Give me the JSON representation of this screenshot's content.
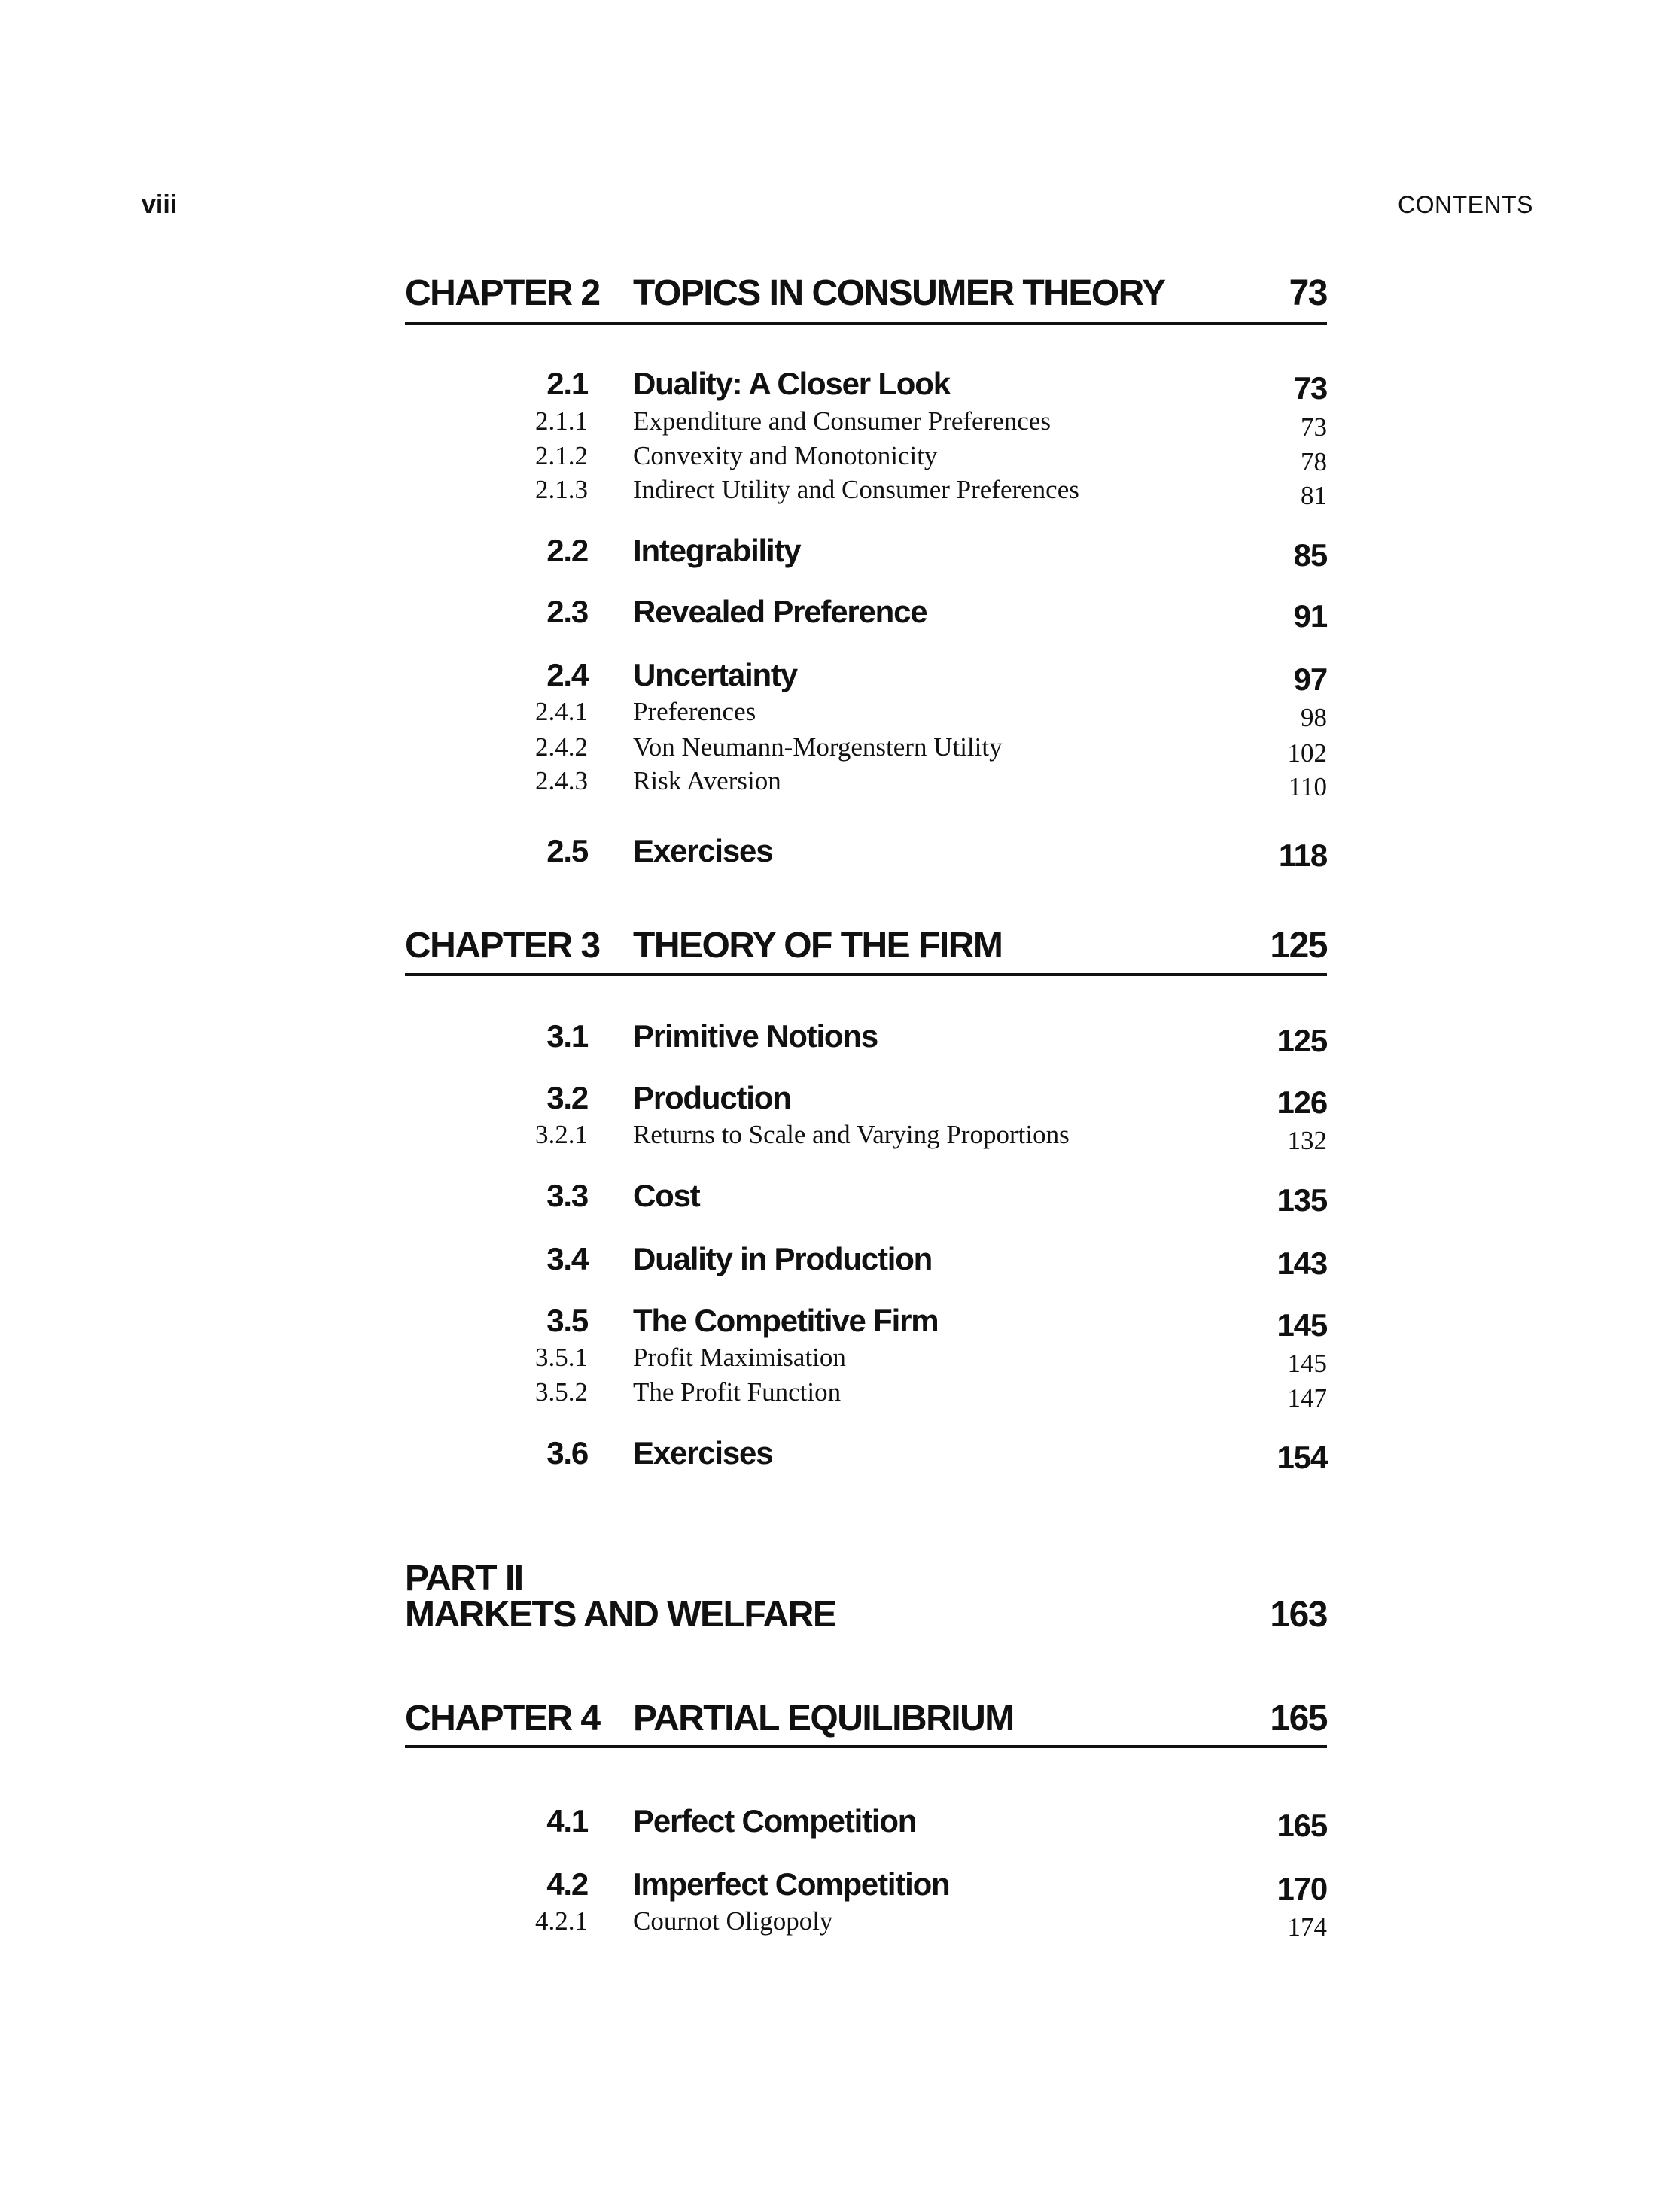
{
  "header": {
    "page_number": "viii",
    "running_title": "CONTENTS"
  },
  "entries": [
    {
      "type": "chapter",
      "label": "CHAPTER 2",
      "title": "TOPICS IN CONSUMER THEORY",
      "page": "73"
    },
    {
      "type": "section",
      "number": "2.1",
      "title": "Duality: A Closer Look",
      "page": "73"
    },
    {
      "type": "subsection",
      "number": "2.1.1",
      "title": "Expenditure and Consumer Preferences",
      "page": "73"
    },
    {
      "type": "subsection",
      "number": "2.1.2",
      "title": "Convexity and Monotonicity",
      "page": "78"
    },
    {
      "type": "subsection",
      "number": "2.1.3",
      "title": "Indirect Utility and Consumer Preferences",
      "page": "81"
    },
    {
      "type": "section",
      "number": "2.2",
      "title": "Integrability",
      "page": "85"
    },
    {
      "type": "section",
      "number": "2.3",
      "title": "Revealed Preference",
      "page": "91"
    },
    {
      "type": "section",
      "number": "2.4",
      "title": "Uncertainty",
      "page": "97"
    },
    {
      "type": "subsection",
      "number": "2.4.1",
      "title": "Preferences",
      "page": "98"
    },
    {
      "type": "subsection",
      "number": "2.4.2",
      "title": "Von Neumann-Morgenstern Utility",
      "page": "102"
    },
    {
      "type": "subsection",
      "number": "2.4.3",
      "title": "Risk Aversion",
      "page": "110"
    },
    {
      "type": "section",
      "number": "2.5",
      "title": "Exercises",
      "page": "118"
    },
    {
      "type": "chapter",
      "label": "CHAPTER 3",
      "title": "THEORY OF THE FIRM",
      "page": "125"
    },
    {
      "type": "section",
      "number": "3.1",
      "title": "Primitive Notions",
      "page": "125"
    },
    {
      "type": "section",
      "number": "3.2",
      "title": "Production",
      "page": "126"
    },
    {
      "type": "subsection",
      "number": "3.2.1",
      "title": "Returns to Scale and Varying Proportions",
      "page": "132"
    },
    {
      "type": "section",
      "number": "3.3",
      "title": "Cost",
      "page": "135"
    },
    {
      "type": "section",
      "number": "3.4",
      "title": "Duality in Production",
      "page": "143"
    },
    {
      "type": "section",
      "number": "3.5",
      "title": "The Competitive Firm",
      "page": "145"
    },
    {
      "type": "subsection",
      "number": "3.5.1",
      "title": "Profit Maximisation",
      "page": "145"
    },
    {
      "type": "subsection",
      "number": "3.5.2",
      "title": "The Profit Function",
      "page": "147"
    },
    {
      "type": "section",
      "number": "3.6",
      "title": "Exercises",
      "page": "154"
    },
    {
      "type": "part",
      "label": "PART II",
      "title": "MARKETS AND WELFARE",
      "page": "163"
    },
    {
      "type": "chapter",
      "label": "CHAPTER 4",
      "title": "PARTIAL EQUILIBRIUM",
      "page": "165"
    },
    {
      "type": "section",
      "number": "4.1",
      "title": "Perfect Competition",
      "page": "165"
    },
    {
      "type": "section",
      "number": "4.2",
      "title": "Imperfect Competition",
      "page": "170"
    },
    {
      "type": "subsection",
      "number": "4.2.1",
      "title": "Cournot Oligopoly",
      "page": "174"
    }
  ]
}
